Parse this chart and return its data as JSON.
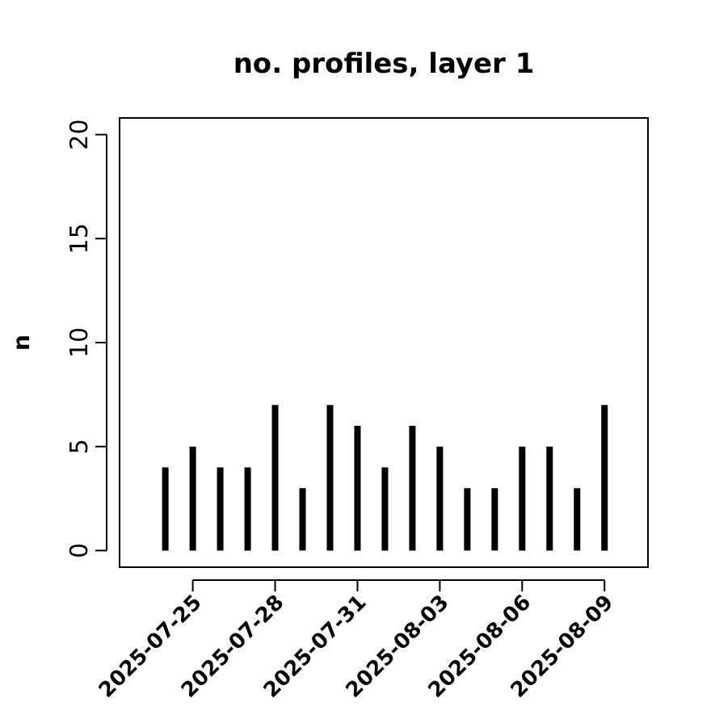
{
  "chart_data": {
    "type": "bar",
    "title": "no. profiles, layer 1",
    "ylabel": "n",
    "x": [
      "2025-07-24",
      "2025-07-25",
      "2025-07-26",
      "2025-07-27",
      "2025-07-28",
      "2025-07-29",
      "2025-07-30",
      "2025-07-31",
      "2025-08-01",
      "2025-08-02",
      "2025-08-03",
      "2025-08-04",
      "2025-08-05",
      "2025-08-06",
      "2025-08-07",
      "2025-08-08",
      "2025-08-09"
    ],
    "values": [
      4,
      5,
      4,
      4,
      7,
      3,
      7,
      6,
      4,
      6,
      5,
      3,
      3,
      5,
      5,
      3,
      7
    ],
    "color": "#000000",
    "xlim": [
      "2025-07-22T08:00",
      "2025-08-10T14:00"
    ],
    "xticks": [
      "2025-07-25",
      "2025-07-28",
      "2025-07-31",
      "2025-08-03",
      "2025-08-06",
      "2025-08-09"
    ],
    "ylim": [
      -0.8,
      20.8
    ],
    "yticks": [
      0,
      5,
      10,
      15,
      20
    ]
  }
}
